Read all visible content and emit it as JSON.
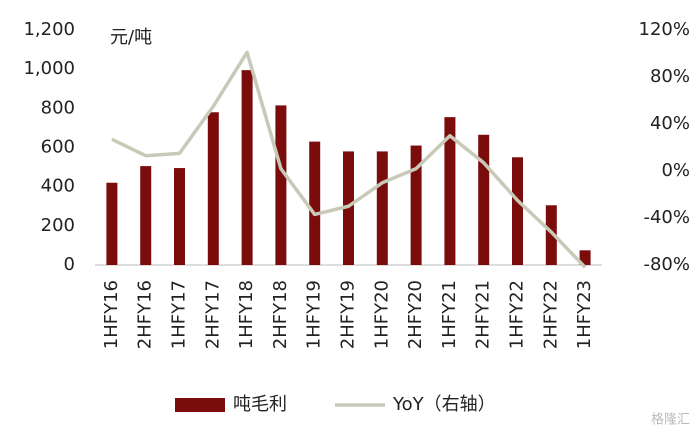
{
  "chart_data": {
    "type": "bar_line",
    "unit_label": "元/吨",
    "categories": [
      "1HFY16",
      "2HFY16",
      "1HFY17",
      "2HFY17",
      "1HFY18",
      "2HFY18",
      "1HFY19",
      "2HFY19",
      "1HFY20",
      "2HFY20",
      "1HFY21",
      "2HFY21",
      "1HFY22",
      "2HFY22",
      "1HFY23"
    ],
    "series": [
      {
        "name": "吨毛利",
        "color": "#7b0c0c",
        "values": [
          420,
          505,
          495,
          780,
          995,
          815,
          630,
          580,
          580,
          610,
          755,
          665,
          550,
          305,
          75
        ]
      },
      {
        "name": "YoY（右轴）",
        "color": "#c9c9b8",
        "axis": "y2",
        "values": [
          27,
          13,
          15,
          55,
          101,
          2,
          -37,
          -30,
          -10,
          2,
          30,
          7,
          -25,
          -52,
          -82
        ]
      }
    ],
    "ylim": [
      0,
      1200
    ],
    "yticks": [
      0,
      200,
      400,
      600,
      800,
      {
        "value": 1000,
        "label": "1,000"
      },
      {
        "value": 1200,
        "label": "1,200"
      }
    ],
    "y2lim": [
      -80,
      120
    ],
    "y2ticks": [
      {
        "value": -80,
        "label": "-80%"
      },
      {
        "value": -40,
        "label": "-40%"
      },
      {
        "value": 0,
        "label": "0%"
      },
      {
        "value": 40,
        "label": "40%"
      },
      {
        "value": 80,
        "label": "80%"
      },
      {
        "value": 120,
        "label": "120%"
      }
    ],
    "watermark": "格隆汇"
  }
}
